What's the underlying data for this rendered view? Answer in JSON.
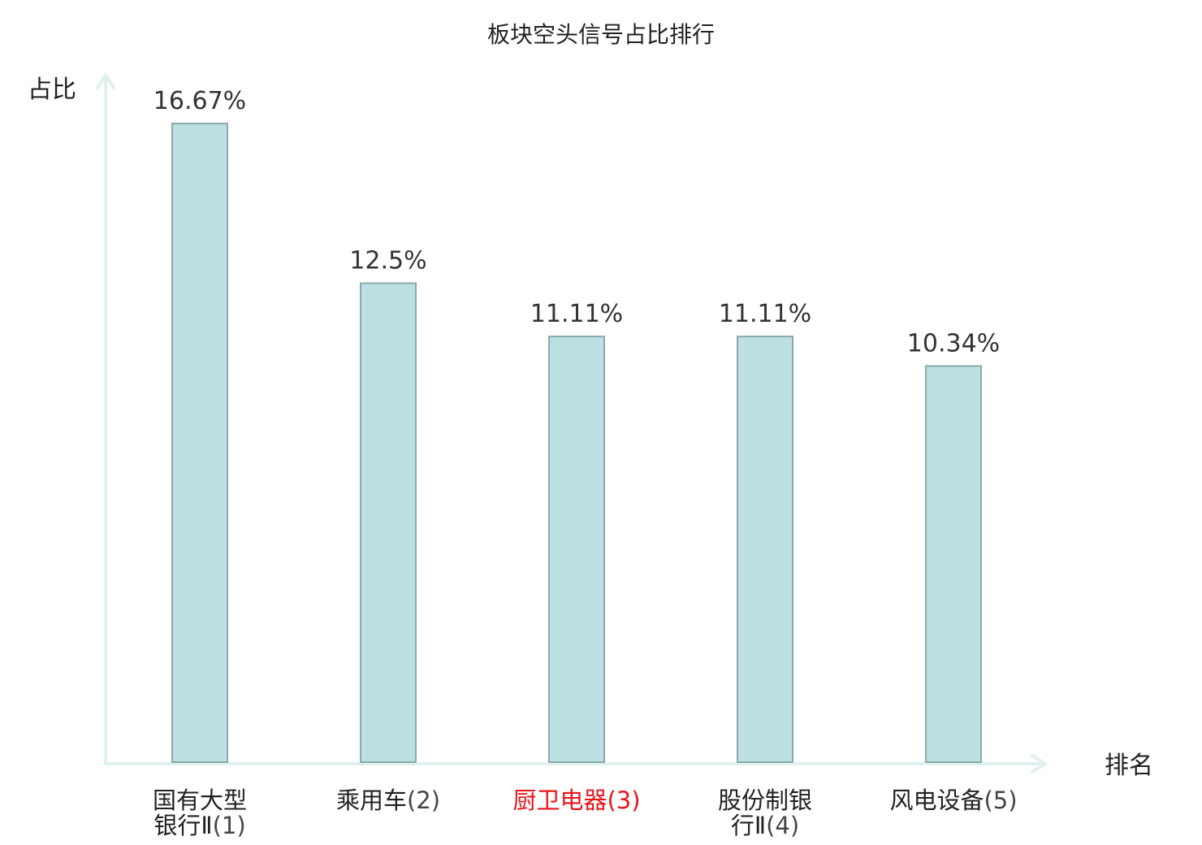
{
  "chart_data": {
    "type": "bar",
    "title": "板块空头信号占比排行",
    "ylabel": "占比",
    "xlabel": "排名",
    "ylim": [
      0,
      18.0
    ],
    "grid": false,
    "categories": [
      {
        "name_lines": [
          "国有大型",
          "银行Ⅱ"
        ],
        "rank": "(1)",
        "highlight": false
      },
      {
        "name_lines": [
          "乘用车"
        ],
        "rank": "(2)",
        "highlight": false
      },
      {
        "name_lines": [
          "厨卫电器"
        ],
        "rank": "(3)",
        "highlight": true
      },
      {
        "name_lines": [
          "股份制银",
          "行Ⅱ"
        ],
        "rank": "(4)",
        "highlight": false
      },
      {
        "name_lines": [
          "风电设备"
        ],
        "rank": "(5)",
        "highlight": false
      }
    ],
    "values": [
      16.67,
      12.5,
      11.11,
      11.11,
      10.34
    ],
    "value_labels": [
      "16.67%",
      "12.5%",
      "11.11%",
      "11.11%",
      "10.34%"
    ],
    "colors": {
      "bar_fill": "#bde0e2",
      "bar_stroke": "#8aa9aa",
      "axis": "#dff1ef",
      "highlight_text": "#e8141a",
      "category_name": "#222222",
      "category_rank": "#444444"
    }
  }
}
